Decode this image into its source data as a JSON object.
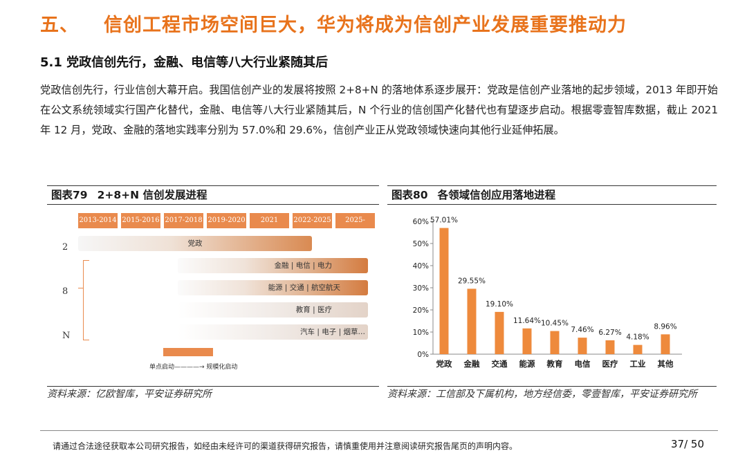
{
  "heading": {
    "number": "五、",
    "title": "信创工程市场空间巨大，华为将成为信创产业发展重要推动力"
  },
  "subheading": "5.1 党政信创先行，金融、电信等八大行业紧随其后",
  "paragraph": "党政信创先行，行业信创大幕开启。我国信创产业的发展将按照 2+8+N 的落地体系逐步展开：党政是信创产业落地的起步领域，2013 年即开始在公文系统领域实行国产化替代，金融、电信等八大行业紧随其后，N 个行业的信创国产化替代也有望逐步启动。根据零壹智库数据，截止 2021 年 12 月，党政、金融的落地实践率分别为 57.0%和 29.6%，信创产业正从党政领域快速向其他行业延伸拓展。",
  "figure79": {
    "label": "图表79",
    "title": "2+8+N 信创发展进程",
    "years": [
      "2013-2014",
      "2015-2016",
      "2017-2018",
      "2019-2020",
      "2021",
      "2022-2025",
      "2025-"
    ],
    "row_labels": [
      "2",
      "8",
      "N"
    ],
    "bars": [
      "党政",
      "金融 | 电信 | 电力",
      "能源 | 交通 | 航空航天",
      "教育 | 医疗",
      "汽车 | 电子 | 烟草…"
    ],
    "legend": "单点启动————→ 规模化启动",
    "source": "资料来源：亿欧智库，平安证券研究所"
  },
  "figure80": {
    "label": "图表80",
    "title": "各领域信创应用落地进程",
    "source": "资料来源：工信部及下属机构，地方经信委，零壹智库，平安证券研究所"
  },
  "chart_data": {
    "type": "bar",
    "title": "各领域信创应用落地进程",
    "categories": [
      "党政",
      "金融",
      "交通",
      "能源",
      "教育",
      "电信",
      "医疗",
      "工业",
      "其他"
    ],
    "values": [
      57.01,
      29.55,
      19.1,
      11.64,
      10.45,
      7.46,
      6.27,
      4.18,
      8.96
    ],
    "value_labels": [
      "57.01%",
      "29.55%",
      "19.10%",
      "11.64%",
      "10.45%",
      "7.46%",
      "6.27%",
      "4.18%",
      "8.96%"
    ],
    "yticks": [
      "0%",
      "10%",
      "20%",
      "30%",
      "40%",
      "50%",
      "60%"
    ],
    "ylim": [
      0,
      60
    ],
    "bar_color": "#ee8a3c"
  },
  "footer": {
    "disclaimer": "请通过合法途径获取本公司研究报告，如经由未经许可的渠道获得研究报告，请慎重使用并注意阅读研究报告尾页的声明内容。",
    "page": "37/ 50"
  }
}
